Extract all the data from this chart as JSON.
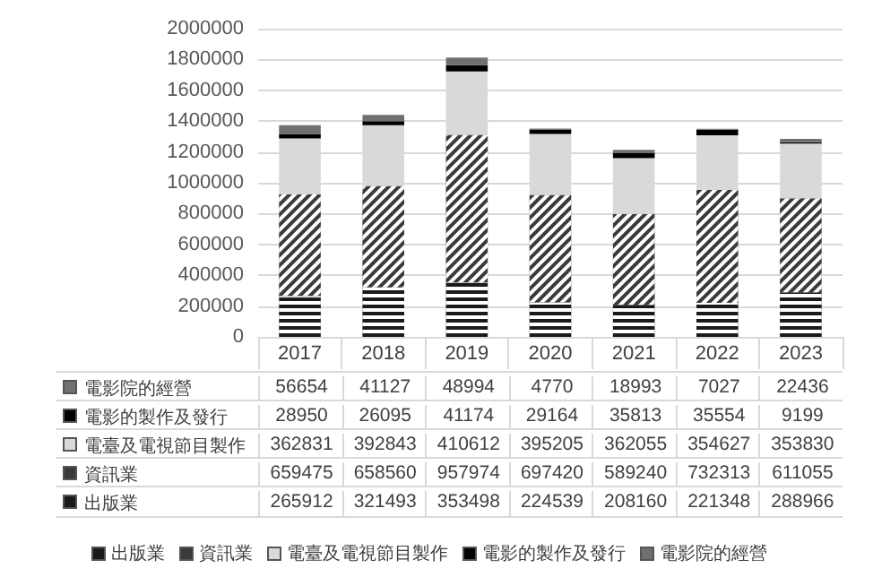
{
  "chart_data": {
    "type": "bar",
    "stacked": true,
    "categories": [
      "2017",
      "2018",
      "2019",
      "2020",
      "2021",
      "2022",
      "2023"
    ],
    "series": [
      {
        "name": "出版業",
        "color": "#1a1a1a",
        "values": [
          265912,
          321493,
          353498,
          224539,
          208160,
          221348,
          288966
        ]
      },
      {
        "name": "資訊業",
        "color": "#3a3a3a",
        "values": [
          659475,
          658560,
          957974,
          697420,
          589240,
          732313,
          611055
        ]
      },
      {
        "name": "電臺及電視節目製作",
        "color": "#d9d9d9",
        "values": [
          362831,
          392843,
          410612,
          395205,
          362055,
          354627,
          353830
        ]
      },
      {
        "name": "電影的製作及發行",
        "color": "#000000",
        "values": [
          28950,
          26095,
          41174,
          29164,
          35813,
          35554,
          9199
        ]
      },
      {
        "name": "電影院的經營",
        "color": "#707070",
        "values": [
          56654,
          41127,
          48994,
          4770,
          18993,
          7027,
          22436
        ]
      }
    ],
    "ylim": [
      0,
      2000000
    ],
    "yticks": [
      0,
      200000,
      400000,
      600000,
      800000,
      1000000,
      1200000,
      1400000,
      1600000,
      1800000,
      2000000
    ],
    "grid": "y",
    "legend": "bottom",
    "data_labels": true
  }
}
